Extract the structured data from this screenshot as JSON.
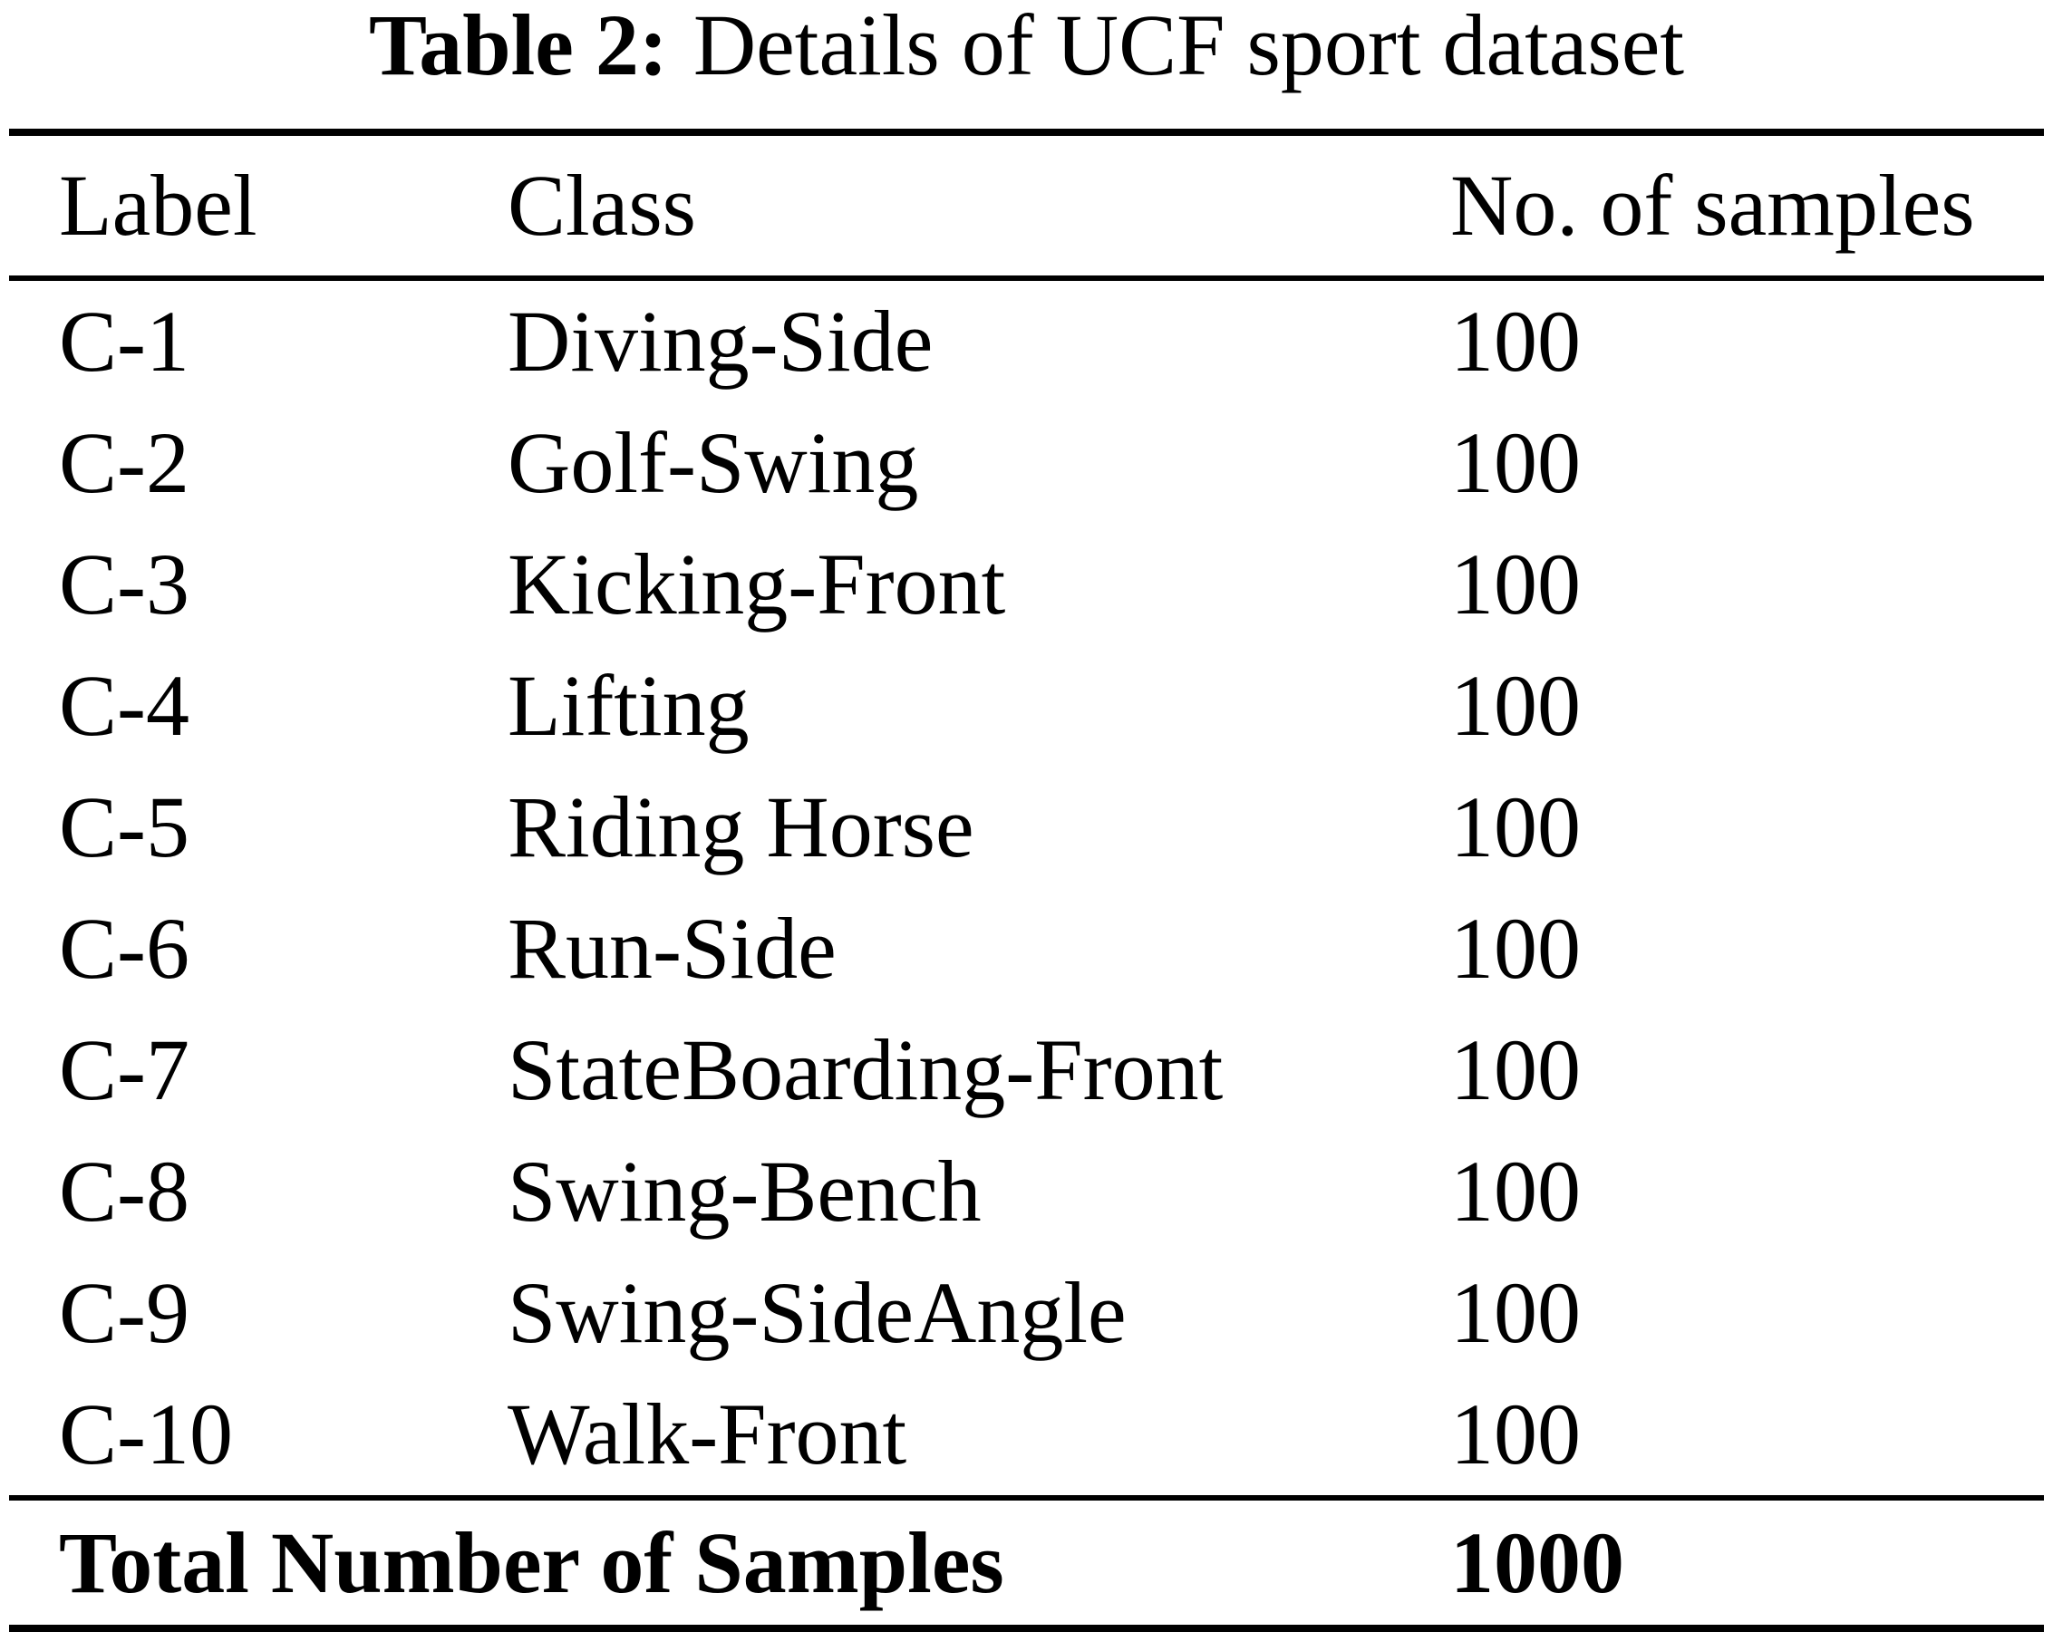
{
  "table": {
    "title_label": "Table 2:",
    "title_text": "Details of UCF sport dataset",
    "columns": [
      "Label",
      "Class",
      "No. of samples"
    ],
    "rows": [
      {
        "label": "C-1",
        "class": "Diving-Side",
        "samples": "100"
      },
      {
        "label": "C-2",
        "class": "Golf-Swing",
        "samples": "100"
      },
      {
        "label": "C-3",
        "class": "Kicking-Front",
        "samples": "100"
      },
      {
        "label": "C-4",
        "class": "Lifting",
        "samples": "100"
      },
      {
        "label": "C-5",
        "class": "Riding Horse",
        "samples": "100"
      },
      {
        "label": "C-6",
        "class": "Run-Side",
        "samples": "100"
      },
      {
        "label": "C-7",
        "class": "StateBoarding-Front",
        "samples": "100"
      },
      {
        "label": "C-8",
        "class": "Swing-Bench",
        "samples": "100"
      },
      {
        "label": "C-9",
        "class": "Swing-SideAngle",
        "samples": "100"
      },
      {
        "label": "C-10",
        "class": "Walk-Front",
        "samples": "100"
      }
    ],
    "total_label": "Total Number of Samples",
    "total_value": "1000"
  },
  "chart_data": {
    "type": "table",
    "title": "Table 2: Details of UCF sport dataset",
    "columns": [
      "Label",
      "Class",
      "No. of samples"
    ],
    "categories": [
      "Diving-Side",
      "Golf-Swing",
      "Kicking-Front",
      "Lifting",
      "Riding Horse",
      "Run-Side",
      "StateBoarding-Front",
      "Swing-Bench",
      "Swing-SideAngle",
      "Walk-Front"
    ],
    "values": [
      100,
      100,
      100,
      100,
      100,
      100,
      100,
      100,
      100,
      100
    ],
    "total": 1000
  },
  "colors": {
    "text": "#000000",
    "background": "#ffffff",
    "rule": "#000000"
  }
}
